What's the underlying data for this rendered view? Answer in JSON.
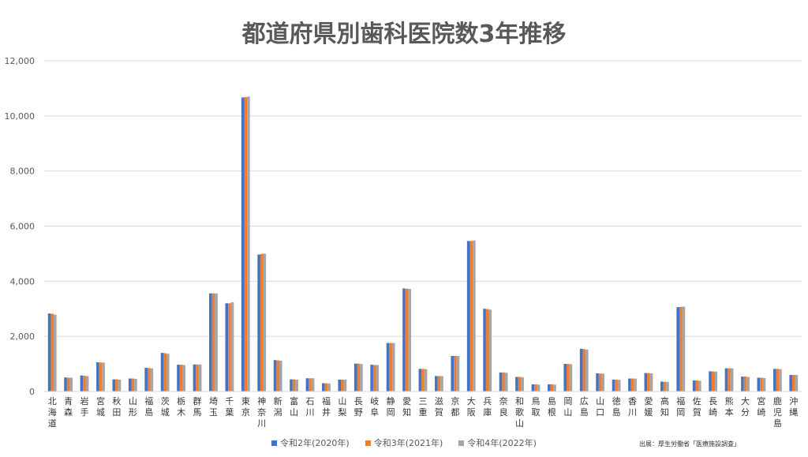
{
  "chart_data": {
    "type": "bar",
    "title": "都道府県別歯科医院数3年推移",
    "xlabel": "",
    "ylabel": "",
    "ylim": [
      0,
      12000
    ],
    "yticks": [
      "0",
      "2,000",
      "4,000",
      "6,000",
      "8,000",
      "10,000",
      "12,000"
    ],
    "grid": true,
    "legend_position": "bottom",
    "categories": [
      "北海道",
      "青森",
      "岩手",
      "宮城",
      "秋田",
      "山形",
      "福島",
      "茨城",
      "栃木",
      "群馬",
      "埼玉",
      "千葉",
      "東京",
      "神奈川",
      "新潟",
      "富山",
      "石川",
      "福井",
      "山梨",
      "長野",
      "岐阜",
      "静岡",
      "愛知",
      "三重",
      "滋賀",
      "京都",
      "大阪",
      "兵庫",
      "奈良",
      "和歌山",
      "鳥取",
      "島根",
      "岡山",
      "広島",
      "山口",
      "徳島",
      "香川",
      "愛媛",
      "高知",
      "福岡",
      "佐賀",
      "長崎",
      "熊本",
      "大分",
      "宮崎",
      "鹿児島",
      "沖縄"
    ],
    "series": [
      {
        "name": "令和2年(2020年)",
        "color": "#4472C4",
        "values": [
          2830,
          510,
          580,
          1060,
          440,
          470,
          860,
          1400,
          970,
          980,
          3560,
          3200,
          10670,
          4970,
          1140,
          440,
          480,
          300,
          430,
          1010,
          970,
          1760,
          3740,
          820,
          560,
          1290,
          5460,
          3000,
          690,
          530,
          260,
          260,
          1000,
          1550,
          660,
          430,
          470,
          670,
          360,
          3060,
          400,
          730,
          840,
          540,
          500,
          820,
          600
        ]
      },
      {
        "name": "令和3年(2021年)",
        "color": "#ED7D31",
        "values": [
          2820,
          500,
          570,
          1050,
          440,
          470,
          850,
          1390,
          970,
          980,
          3560,
          3200,
          10680,
          4990,
          1130,
          440,
          480,
          300,
          430,
          1010,
          960,
          1760,
          3730,
          820,
          560,
          1290,
          5460,
          2990,
          690,
          530,
          260,
          260,
          1000,
          1540,
          650,
          430,
          470,
          670,
          350,
          3070,
          400,
          730,
          840,
          540,
          500,
          820,
          600
        ]
      },
      {
        "name": "令和4年(2022年)",
        "color": "#A5A5A5",
        "values": [
          2790,
          500,
          560,
          1050,
          430,
          460,
          840,
          1370,
          960,
          980,
          3560,
          3240,
          10700,
          5000,
          1120,
          430,
          480,
          290,
          430,
          1000,
          960,
          1760,
          3720,
          810,
          560,
          1290,
          5480,
          2970,
          680,
          520,
          250,
          250,
          990,
          1520,
          650,
          420,
          470,
          660,
          350,
          3080,
          390,
          720,
          840,
          530,
          490,
          810,
          600
        ]
      }
    ],
    "source": "出展：厚生労働省「医療施設調査」"
  }
}
